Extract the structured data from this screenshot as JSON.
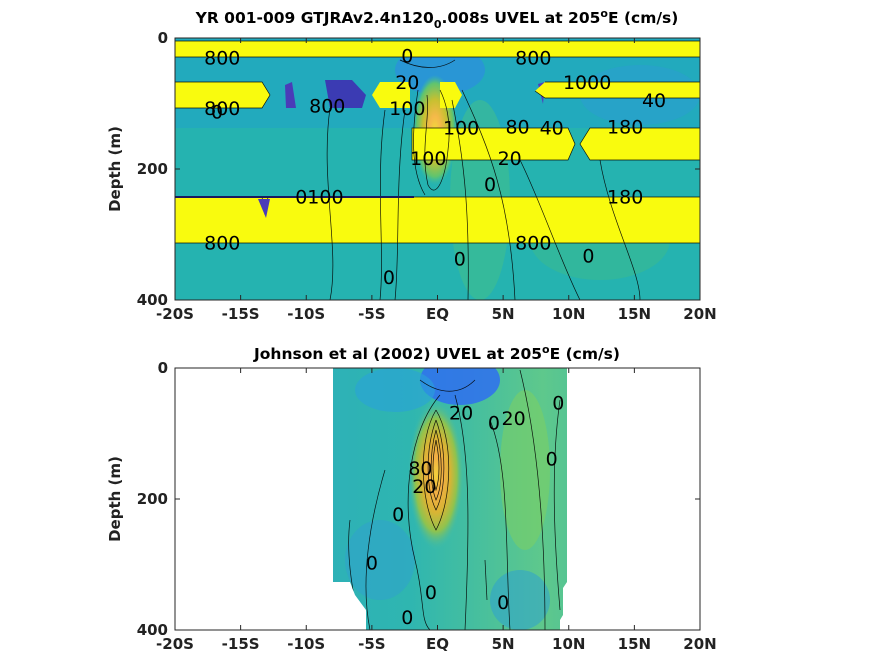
{
  "chart_data": [
    {
      "type": "contour",
      "title": "YR 001-009 GTJRAv2.4n120",
      "title_subscript": "0",
      "title_rest": ".008s UVEL at 205",
      "title_superscript": "o",
      "title_end": "E (cm/s)",
      "xlabel": "",
      "ylabel": "Depth (m)",
      "x_ticks": [
        "-20S",
        "-15S",
        "-10S",
        "-5S",
        "EQ",
        "5N",
        "10N",
        "15N",
        "20N"
      ],
      "y_ticks": [
        "0",
        "200",
        "400"
      ],
      "xlim": [
        -20,
        20
      ],
      "ylim": [
        0,
        400
      ],
      "y_reversed": true,
      "colormap": "parula",
      "field_core": {
        "lat": 0,
        "depth": 130,
        "max_cm_s": 100
      },
      "contour_labels": [
        {
          "text": "800",
          "lat": -16.4,
          "depth": 30
        },
        {
          "text": "0",
          "lat": -2.3,
          "depth": 27
        },
        {
          "text": "800",
          "lat": 7.3,
          "depth": 30
        },
        {
          "text": "20",
          "lat": -2.3,
          "depth": 67
        },
        {
          "text": "1000",
          "lat": 11.4,
          "depth": 67
        },
        {
          "text": "40",
          "lat": 16.5,
          "depth": 95
        },
        {
          "text": "800",
          "lat": -16.4,
          "depth": 107
        },
        {
          "text": "0",
          "lat": -16.8,
          "depth": 112
        },
        {
          "text": "800",
          "lat": -8.4,
          "depth": 103
        },
        {
          "text": "100",
          "lat": -2.3,
          "depth": 107
        },
        {
          "text": "100",
          "lat": 1.8,
          "depth": 137
        },
        {
          "text": "80",
          "lat": 6.1,
          "depth": 135
        },
        {
          "text": "40",
          "lat": 8.7,
          "depth": 137
        },
        {
          "text": "180",
          "lat": 14.3,
          "depth": 135
        },
        {
          "text": "100",
          "lat": -0.7,
          "depth": 183
        },
        {
          "text": "20",
          "lat": 5.5,
          "depth": 183
        },
        {
          "text": "0",
          "lat": 4.0,
          "depth": 223
        },
        {
          "text": "0100",
          "lat": -9.0,
          "depth": 242
        },
        {
          "text": "180",
          "lat": 14.3,
          "depth": 242
        },
        {
          "text": "800",
          "lat": -16.4,
          "depth": 312
        },
        {
          "text": "800",
          "lat": 7.3,
          "depth": 312
        },
        {
          "text": "0",
          "lat": 1.7,
          "depth": 337
        },
        {
          "text": "0",
          "lat": 11.5,
          "depth": 332
        },
        {
          "text": "0",
          "lat": -3.7,
          "depth": 365
        }
      ]
    },
    {
      "type": "contour",
      "title": "Johnson et al (2002) UVEL at 205",
      "title_superscript": "o",
      "title_end": "E (cm/s)",
      "xlabel": "",
      "ylabel": "Depth (m)",
      "x_ticks": [
        "-20S",
        "-15S",
        "-10S",
        "-5S",
        "EQ",
        "5N",
        "10N",
        "15N",
        "20N"
      ],
      "y_ticks": [
        "0",
        "200",
        "400"
      ],
      "xlim": [
        -20,
        20
      ],
      "ylim": [
        0,
        400
      ],
      "y_reversed": true,
      "colormap": "parula",
      "data_extent_lat": [
        -8,
        10
      ],
      "field_core": {
        "lat": 0,
        "depth": 130,
        "max_cm_s": 100
      },
      "contour_labels": [
        {
          "text": "20",
          "lat": 1.8,
          "depth": 68
        },
        {
          "text": "0",
          "lat": 4.3,
          "depth": 83
        },
        {
          "text": "20",
          "lat": 5.8,
          "depth": 76
        },
        {
          "text": "0",
          "lat": 9.2,
          "depth": 53
        },
        {
          "text": "80",
          "lat": -1.3,
          "depth": 153
        },
        {
          "text": "20",
          "lat": -1.0,
          "depth": 180
        },
        {
          "text": "0",
          "lat": 8.7,
          "depth": 138
        },
        {
          "text": "0",
          "lat": -3.0,
          "depth": 223
        },
        {
          "text": "0",
          "lat": -5.0,
          "depth": 297
        },
        {
          "text": "0",
          "lat": -0.5,
          "depth": 342
        },
        {
          "text": "0",
          "lat": 5.0,
          "depth": 357
        },
        {
          "text": "0",
          "lat": -2.3,
          "depth": 380
        }
      ]
    }
  ]
}
